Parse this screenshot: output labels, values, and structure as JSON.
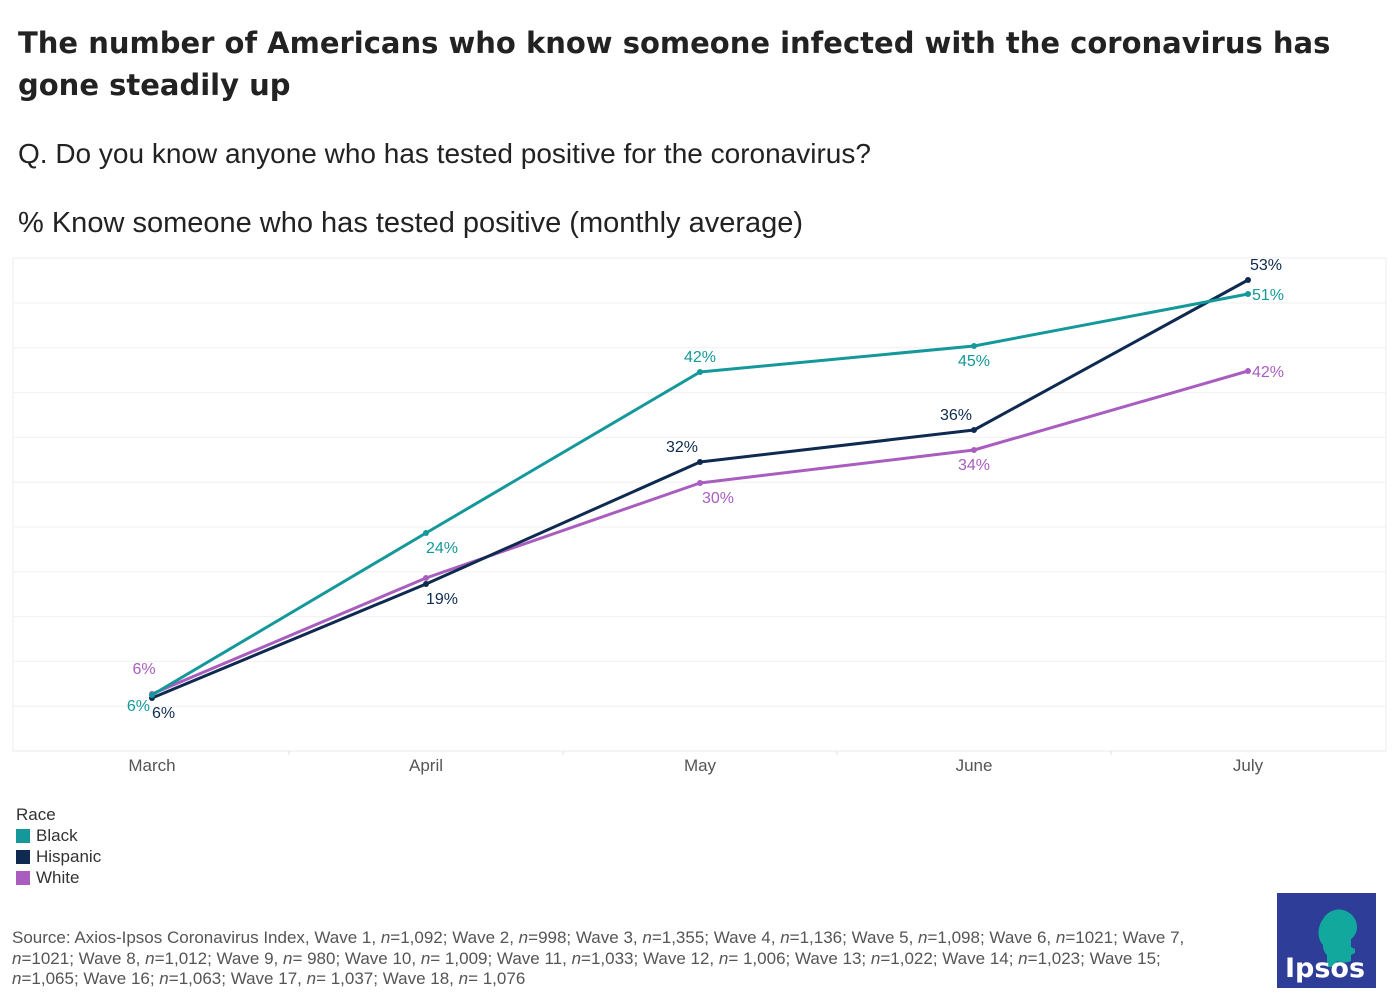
{
  "title": "The number of Americans who know someone infected with the coronavirus has gone steadily up",
  "question": "Q. Do you know anyone who has tested positive for the coronavirus?",
  "subtitle": "% Know someone who has tested positive (monthly average)",
  "chart_data": {
    "type": "line",
    "categories": [
      "March",
      "April",
      "May",
      "June",
      "July"
    ],
    "ylim": [
      0,
      55
    ],
    "grid": true,
    "series": [
      {
        "name": "Black",
        "color": "#14989a",
        "values": [
          6,
          24,
          42,
          45,
          51
        ],
        "labels": [
          "6%",
          "24%",
          "42%",
          "45%",
          "51%"
        ]
      },
      {
        "name": "Hispanic",
        "color": "#0e2a50",
        "values": [
          6,
          19,
          32,
          36,
          53
        ],
        "labels": [
          "6%",
          "19%",
          "32%",
          "36%",
          "53%"
        ]
      },
      {
        "name": "White",
        "color": "#a95dbf",
        "values": [
          6,
          19,
          30,
          34,
          42
        ],
        "labels": [
          "6%",
          "19%",
          "30%",
          "34%",
          "42%"
        ]
      }
    ],
    "hidden_labels": [
      {
        "series": "White",
        "index": 1
      }
    ],
    "legend_title": "Race"
  },
  "source": {
    "prefix": "Source: Axios-Ipsos Coronavirus Index, ",
    "waves": [
      {
        "label": "Wave 1, ",
        "n": "=1,092"
      },
      {
        "label": "Wave 2, ",
        "n": "=998"
      },
      {
        "label": "Wave 3, ",
        "n": "=1,355"
      },
      {
        "label": "Wave 4, ",
        "n": "=1,136"
      },
      {
        "label": "Wave 5, ",
        "n": "=1,098"
      },
      {
        "label": "Wave 6, ",
        "n": "=1021"
      },
      {
        "label": "Wave 7, ",
        "n": "=1021"
      },
      {
        "label": "Wave 8, ",
        "n": "=1,012"
      },
      {
        "label": "Wave 9, ",
        "n": "= 980"
      },
      {
        "label": "Wave 10, ",
        "n": "= 1,009"
      },
      {
        "label": "Wave 11, ",
        "n": "=1,033"
      },
      {
        "label": "Wave 12, ",
        "n": "= 1,006"
      },
      {
        "label": "Wave 13; ",
        "n": "=1,022"
      },
      {
        "label": "Wave 14; ",
        "n": "=1,023"
      },
      {
        "label": "Wave 15; ",
        "n": "=1,065"
      },
      {
        "label": "Wave 16; ",
        "n": "=1,063"
      },
      {
        "label": "Wave 17, ",
        "n": "= 1,037"
      },
      {
        "label": "Wave 18, ",
        "n": "= 1,076"
      }
    ],
    "n_symbol": "n"
  },
  "logo": {
    "text": "Ipsos",
    "color": "#2e3d98",
    "accent": "#13a89e"
  }
}
